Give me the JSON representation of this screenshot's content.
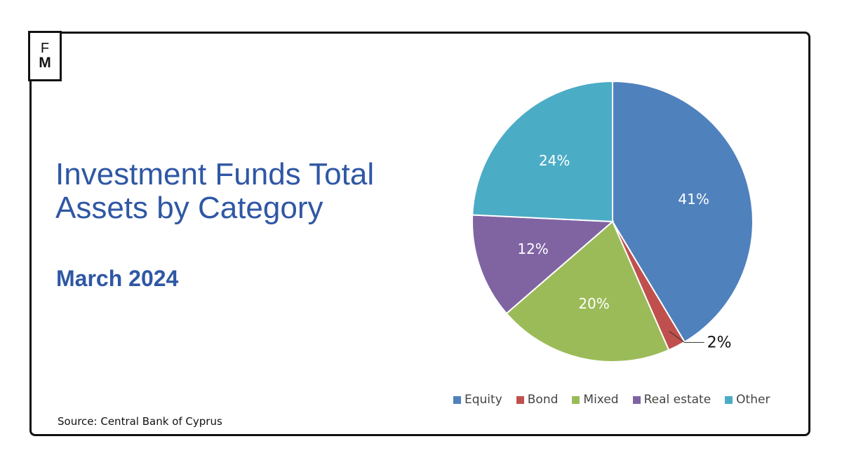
{
  "logo": {
    "line1": "F",
    "line2": "M"
  },
  "title": "Investment Funds Total Assets by Category",
  "subtitle": "March 2024",
  "source": {
    "prefix": "Source:",
    "text": "Central Bank of Cyprus"
  },
  "chart_data": {
    "type": "pie",
    "title": "Investment Funds Total Assets by Category",
    "subtitle": "March 2024",
    "categories": [
      "Equity",
      "Bond",
      "Mixed",
      "Real estate",
      "Other"
    ],
    "values": [
      41,
      2,
      20,
      12,
      24
    ],
    "data_labels": [
      "41%",
      "2%",
      "20%",
      "12%",
      "24%"
    ],
    "colors": [
      "#4f81bd",
      "#c0504d",
      "#9bbb59",
      "#8064a2",
      "#4bacc6"
    ],
    "start_angle": "12 o'clock, clockwise",
    "legend_position": "bottom"
  }
}
